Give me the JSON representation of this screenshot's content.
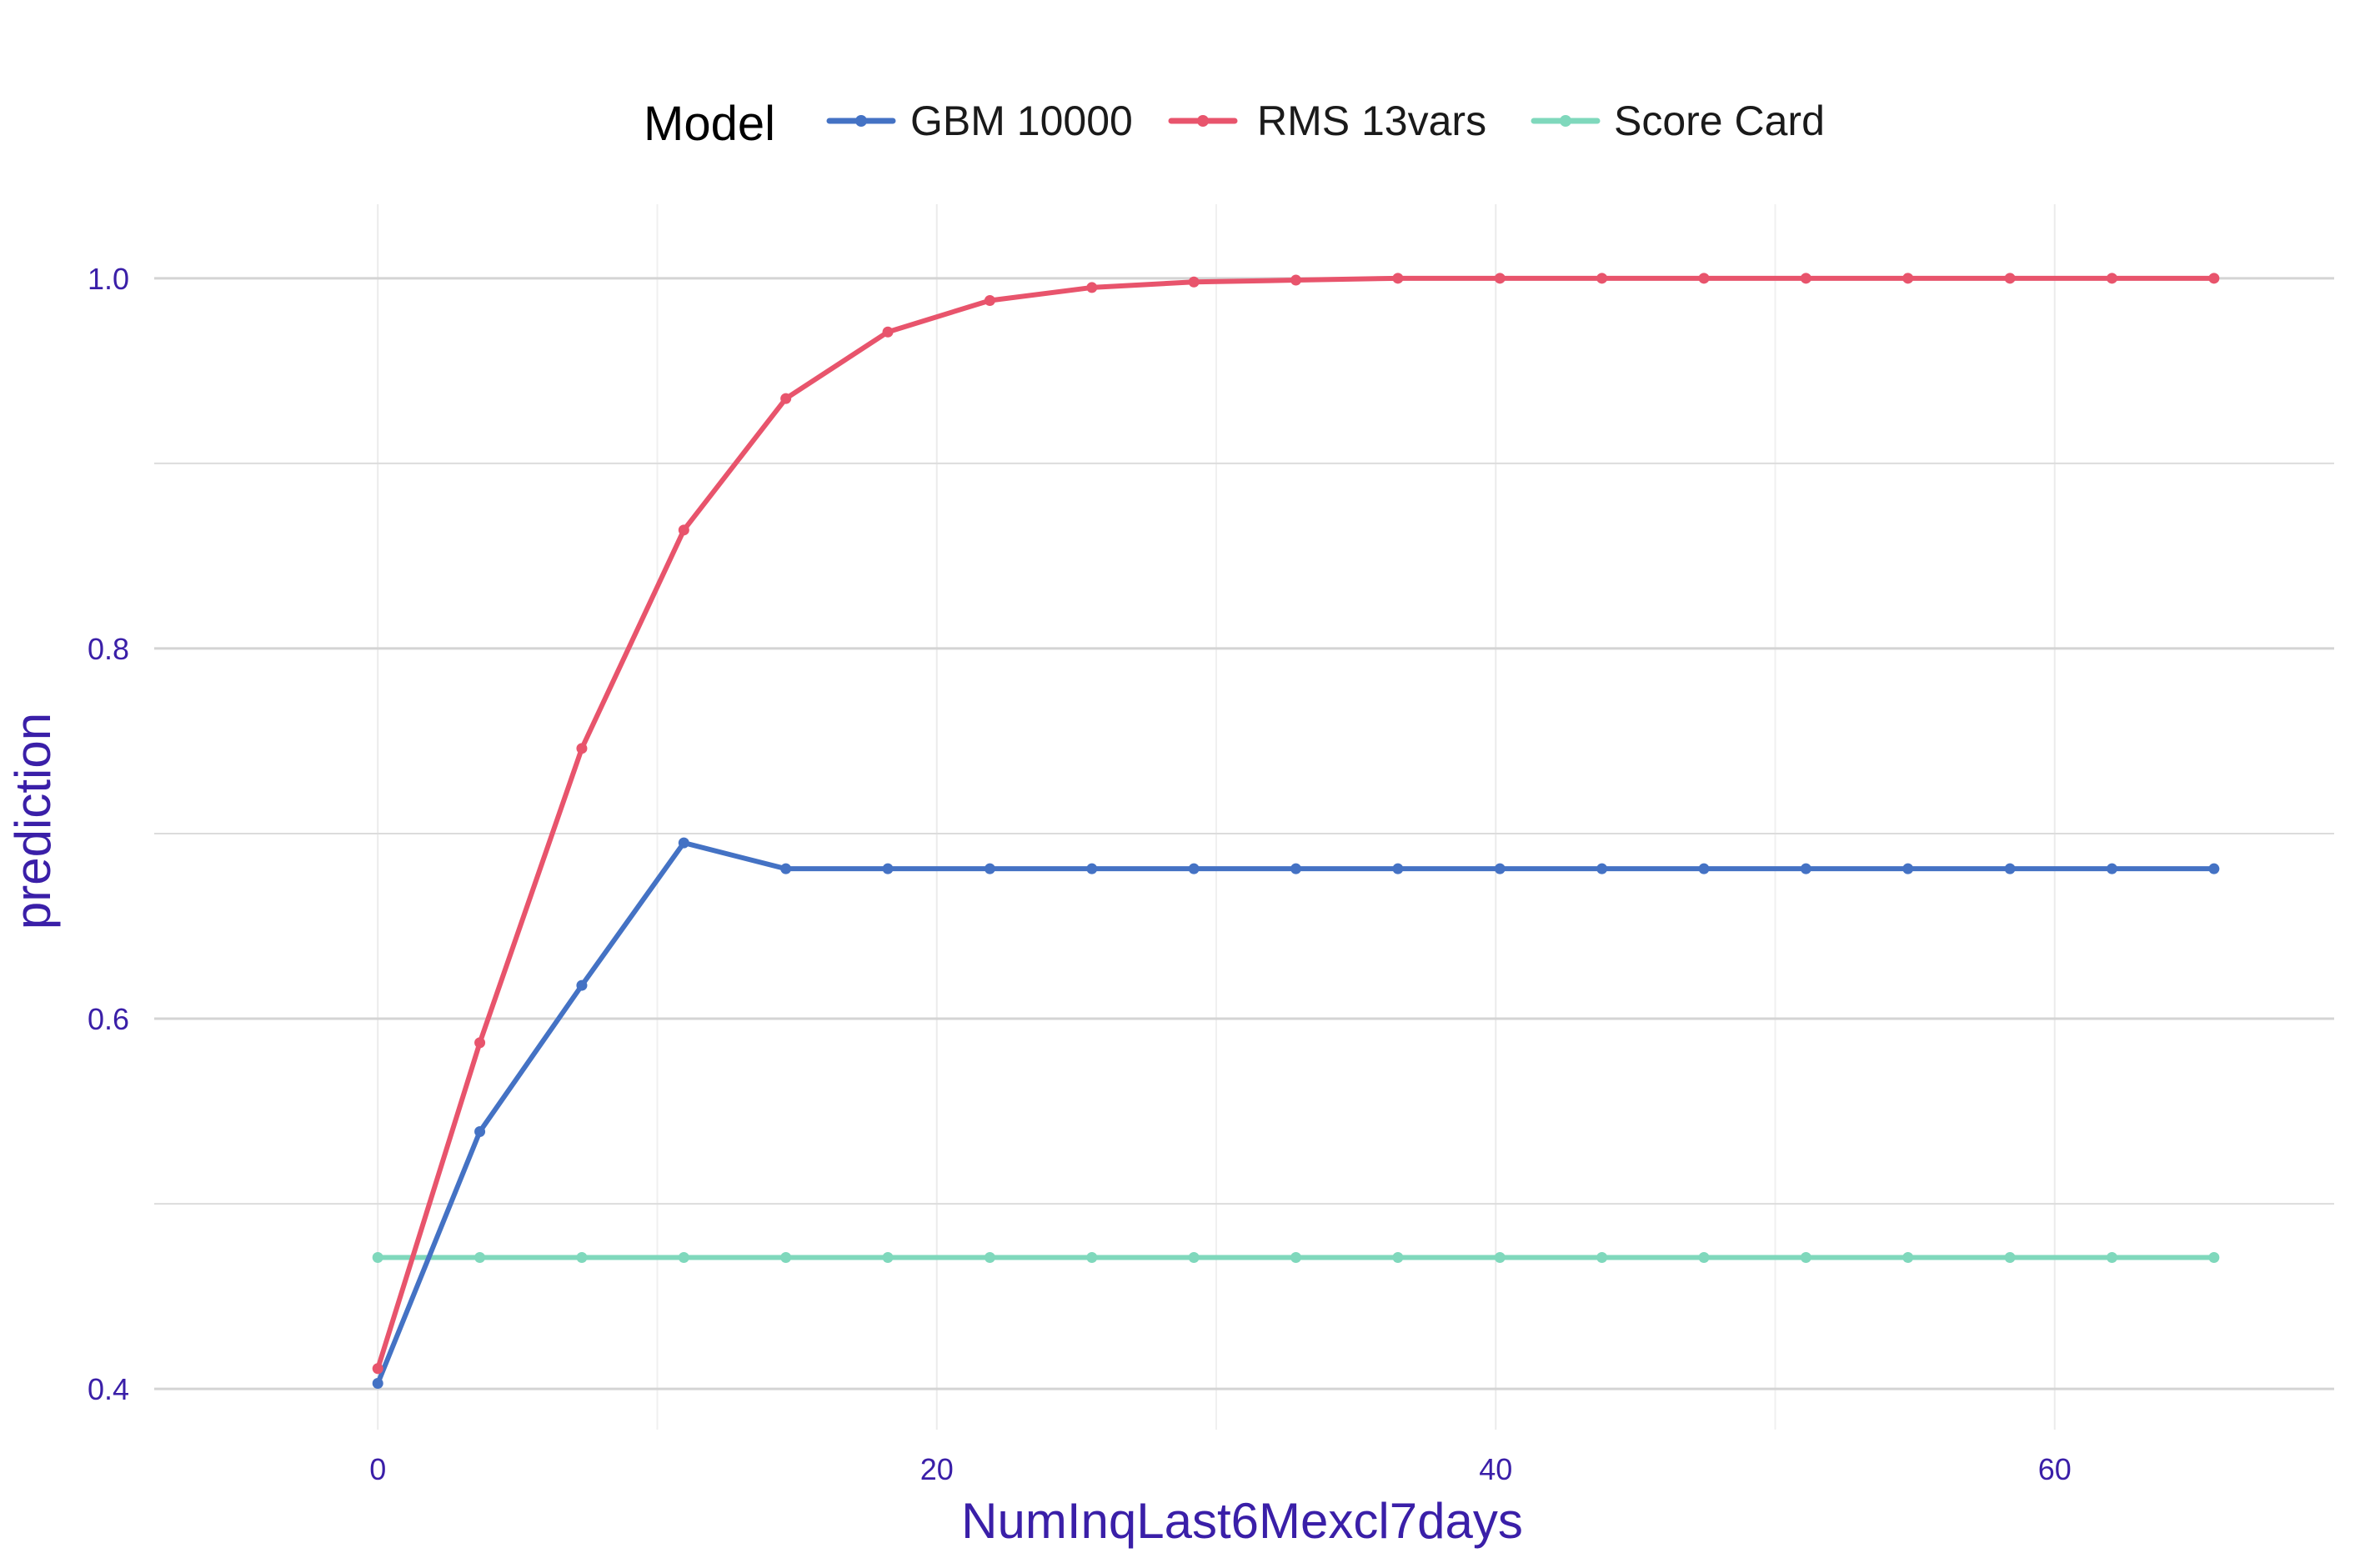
{
  "chart_data": {
    "type": "line",
    "xlabel": "NumInqLast6Mexcl7days",
    "ylabel": "prediction",
    "legend": {
      "title": "Model",
      "placement": "top"
    },
    "xlim": [
      -8,
      70
    ],
    "ylim": [
      0.378,
      1.04
    ],
    "x_ticks": [
      0,
      20,
      40,
      60
    ],
    "x_tick_labels": [
      "0",
      "20",
      "40",
      "60"
    ],
    "y_ticks": [
      0.4,
      0.6,
      0.8,
      1.0
    ],
    "y_tick_labels": [
      "0.4",
      "0.6",
      "0.8",
      "1.0"
    ],
    "y_minor_gridlines": [
      0.5,
      0.7,
      0.9
    ],
    "x_minor_gridlines": [
      10,
      30,
      50
    ],
    "grid": true,
    "x": [
      0,
      3.65,
      7.3,
      10.95,
      14.6,
      18.25,
      21.9,
      25.55,
      29.2,
      32.85,
      36.5,
      40.15,
      43.8,
      47.45,
      51.1,
      54.75,
      58.4,
      62.05,
      65.7
    ],
    "series": [
      {
        "name": "GBM 10000",
        "color": "#4472c4",
        "values": [
          0.403,
          0.539,
          0.618,
          0.695,
          0.681,
          0.681,
          0.681,
          0.681,
          0.681,
          0.681,
          0.681,
          0.681,
          0.681,
          0.681,
          0.681,
          0.681,
          0.681,
          0.681,
          0.681
        ]
      },
      {
        "name": "RMS 13vars",
        "color": "#e8546c",
        "values": [
          0.411,
          0.587,
          0.746,
          0.864,
          0.935,
          0.971,
          0.988,
          0.995,
          0.998,
          0.999,
          1.0,
          1.0,
          1.0,
          1.0,
          1.0,
          1.0,
          1.0,
          1.0,
          1.0
        ]
      },
      {
        "name": "Score Card",
        "color": "#7fd8bc",
        "values": [
          0.471,
          0.471,
          0.471,
          0.471,
          0.471,
          0.471,
          0.471,
          0.471,
          0.471,
          0.471,
          0.471,
          0.471,
          0.471,
          0.471,
          0.471,
          0.471,
          0.471,
          0.471,
          0.471
        ]
      }
    ]
  }
}
